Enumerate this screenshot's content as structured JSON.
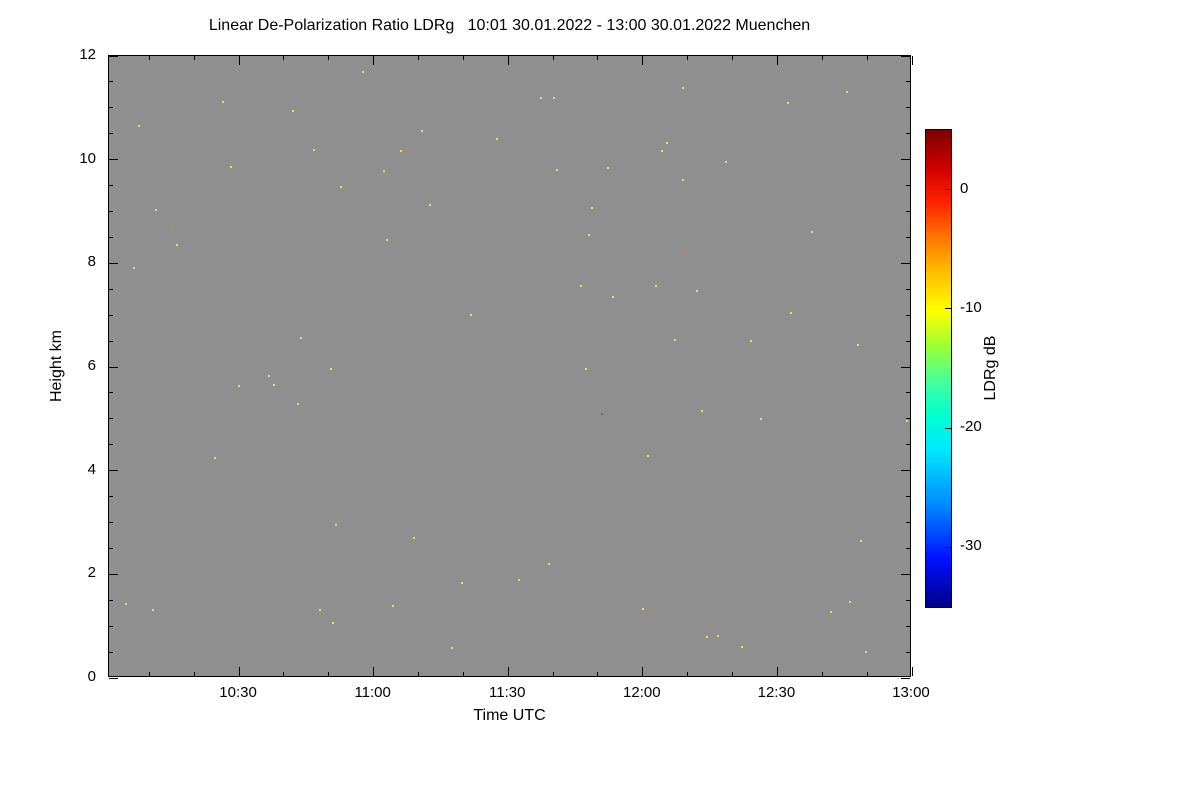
{
  "chart_data": {
    "type": "heatmap",
    "title": "Linear De-Polarization Ratio LDRg   10:01 30.01.2022 - 13:00 30.01.2022 Muenchen",
    "xlabel": "Time UTC",
    "ylabel": "Height km",
    "location": "Muenchen",
    "time_range_utc": "10:01 30.01.2022 - 13:00 30.01.2022",
    "x_axis": {
      "start_utc": "10:01",
      "end_utc": "13:00",
      "start_hours": 10.0167,
      "end_hours": 13.0,
      "major_ticks": [
        10.5,
        11.0,
        11.5,
        12.0,
        12.5,
        13.0
      ],
      "major_tick_labels": [
        "10:30",
        "11:00",
        "11:30",
        "12:00",
        "12:30",
        "13:00"
      ],
      "minor_tick_interval_hours": 0.1667
    },
    "y_axis": {
      "min_km": 0,
      "max_km": 12,
      "major_ticks": [
        0,
        2,
        4,
        6,
        8,
        10,
        12
      ],
      "major_tick_labels": [
        "0",
        "2",
        "4",
        "6",
        "8",
        "10",
        "12"
      ],
      "minor_tick_interval_km": 0.5
    },
    "background": {
      "color": "#8f8f8f",
      "meaning": "no signal / below detection threshold"
    },
    "colorbar": {
      "label": "LDRg dB",
      "min_db": -35,
      "max_db": 5,
      "ticks_db": [
        0,
        -10,
        -20,
        -30
      ],
      "gradient_stops_pct_from_bottom": [
        [
          0,
          "#000085"
        ],
        [
          10,
          "#0010ff"
        ],
        [
          22,
          "#0090ff"
        ],
        [
          33,
          "#00e8ff"
        ],
        [
          40,
          "#00ffd0"
        ],
        [
          47,
          "#40ffa0"
        ],
        [
          55,
          "#a0ff30"
        ],
        [
          62,
          "#ffff00"
        ],
        [
          70,
          "#ffc000"
        ],
        [
          78,
          "#ff7000"
        ],
        [
          85,
          "#ff2000"
        ],
        [
          92,
          "#d00000"
        ],
        [
          100,
          "#7a0000"
        ]
      ]
    },
    "point_colors": {
      "y": "#e8df55",
      "o": "#df831e",
      "d": "#6e6e60"
    },
    "speckle_points_note": "sparse noise speckles; [time_utc_hours, height_km, color_key] where y~-10dB yellow, o~-5dB orange, d=dark",
    "speckle_points": [
      [
        10.08,
        1.43,
        "y"
      ],
      [
        10.11,
        7.91,
        "y"
      ],
      [
        10.13,
        10.64,
        "y"
      ],
      [
        10.18,
        1.32,
        "y"
      ],
      [
        10.19,
        9.03,
        "y"
      ],
      [
        10.25,
        8.68,
        "o"
      ],
      [
        10.27,
        8.35,
        "y"
      ],
      [
        10.41,
        4.25,
        "y"
      ],
      [
        10.44,
        11.11,
        "y"
      ],
      [
        10.47,
        9.85,
        "y"
      ],
      [
        10.5,
        5.64,
        "y"
      ],
      [
        10.61,
        5.83,
        "y"
      ],
      [
        10.63,
        5.66,
        "y"
      ],
      [
        10.7,
        10.93,
        "y"
      ],
      [
        10.72,
        5.29,
        "y"
      ],
      [
        10.73,
        6.55,
        "y"
      ],
      [
        10.75,
        1.32,
        "o"
      ],
      [
        10.78,
        10.19,
        "y"
      ],
      [
        10.8,
        1.32,
        "y"
      ],
      [
        10.84,
        5.97,
        "y"
      ],
      [
        10.85,
        1.07,
        "y"
      ],
      [
        10.86,
        2.95,
        "y"
      ],
      [
        10.88,
        9.48,
        "y"
      ],
      [
        10.9,
        9.42,
        "o"
      ],
      [
        10.96,
        11.69,
        "y"
      ],
      [
        11.04,
        9.79,
        "y"
      ],
      [
        11.05,
        8.45,
        "y"
      ],
      [
        11.07,
        1.38,
        "y"
      ],
      [
        11.1,
        10.16,
        "y"
      ],
      [
        11.12,
        10.18,
        "o"
      ],
      [
        11.15,
        2.71,
        "y"
      ],
      [
        11.18,
        10.55,
        "y"
      ],
      [
        11.21,
        9.13,
        "y"
      ],
      [
        11.29,
        0.58,
        "y"
      ],
      [
        11.33,
        1.84,
        "y"
      ],
      [
        11.36,
        7.0,
        "y"
      ],
      [
        11.46,
        10.39,
        "y"
      ],
      [
        11.54,
        1.9,
        "y"
      ],
      [
        11.62,
        11.19,
        "y"
      ],
      [
        11.65,
        2.19,
        "y"
      ],
      [
        11.67,
        11.19,
        "y"
      ],
      [
        11.68,
        9.81,
        "y"
      ],
      [
        11.77,
        7.56,
        "y"
      ],
      [
        11.79,
        5.97,
        "y"
      ],
      [
        11.8,
        8.55,
        "y"
      ],
      [
        11.81,
        9.07,
        "y"
      ],
      [
        11.85,
        5.1,
        "d"
      ],
      [
        11.87,
        9.83,
        "y"
      ],
      [
        11.89,
        7.35,
        "y"
      ],
      [
        12.0,
        1.34,
        "y"
      ],
      [
        12.02,
        4.28,
        "y"
      ],
      [
        12.03,
        1.26,
        "o"
      ],
      [
        12.05,
        7.56,
        "y"
      ],
      [
        12.07,
        10.16,
        "y"
      ],
      [
        12.09,
        10.33,
        "y"
      ],
      [
        12.12,
        6.53,
        "y"
      ],
      [
        12.15,
        11.38,
        "y"
      ],
      [
        12.15,
        9.6,
        "y"
      ],
      [
        12.15,
        8.2,
        "o"
      ],
      [
        12.2,
        7.46,
        "y"
      ],
      [
        12.22,
        5.16,
        "y"
      ],
      [
        12.24,
        0.79,
        "y"
      ],
      [
        12.28,
        0.81,
        "y"
      ],
      [
        12.31,
        9.96,
        "y"
      ],
      [
        12.37,
        0.6,
        "y"
      ],
      [
        12.4,
        6.51,
        "y"
      ],
      [
        12.44,
        5.0,
        "y"
      ],
      [
        12.54,
        11.09,
        "y"
      ],
      [
        12.55,
        7.04,
        "y"
      ],
      [
        12.63,
        8.6,
        "y"
      ],
      [
        12.7,
        1.28,
        "y"
      ],
      [
        12.76,
        11.3,
        "y"
      ],
      [
        12.77,
        1.47,
        "y"
      ],
      [
        12.8,
        6.42,
        "y"
      ],
      [
        12.81,
        2.64,
        "y"
      ],
      [
        12.83,
        0.5,
        "y"
      ],
      [
        12.86,
        10.1,
        "o"
      ],
      [
        12.98,
        4.96,
        "y"
      ]
    ]
  }
}
